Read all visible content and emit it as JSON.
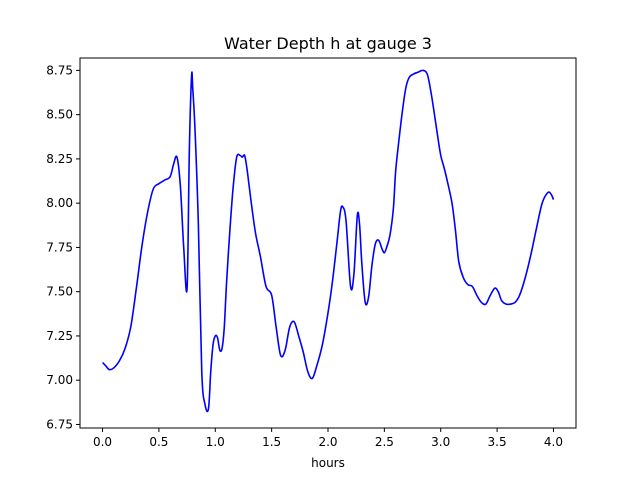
{
  "chart_data": {
    "type": "line",
    "title": "Water Depth h at gauge 3",
    "xlabel": "hours",
    "ylabel": "",
    "xlim": [
      -0.2,
      4.2
    ],
    "ylim": [
      6.73,
      8.82
    ],
    "xticks": [
      0.0,
      0.5,
      1.0,
      1.5,
      2.0,
      2.5,
      3.0,
      3.5,
      4.0
    ],
    "xtick_labels": [
      "0.0",
      "0.5",
      "1.0",
      "1.5",
      "2.0",
      "2.5",
      "3.0",
      "3.5",
      "4.0"
    ],
    "yticks": [
      6.75,
      7.0,
      7.25,
      7.5,
      7.75,
      8.0,
      8.25,
      8.5,
      8.75
    ],
    "ytick_labels": [
      "6.75",
      "7.00",
      "7.25",
      "7.50",
      "7.75",
      "8.00",
      "8.25",
      "8.50",
      "8.75"
    ],
    "grid": false,
    "series": [
      {
        "color": "#0000ff",
        "x": [
          0.0,
          0.03,
          0.06,
          0.1,
          0.15,
          0.2,
          0.25,
          0.3,
          0.35,
          0.4,
          0.45,
          0.5,
          0.55,
          0.6,
          0.63,
          0.66,
          0.69,
          0.72,
          0.75,
          0.77,
          0.79,
          0.8,
          0.82,
          0.85,
          0.88,
          0.91,
          0.94,
          0.96,
          0.98,
          1.0,
          1.02,
          1.04,
          1.06,
          1.08,
          1.1,
          1.13,
          1.16,
          1.19,
          1.22,
          1.24,
          1.26,
          1.28,
          1.3,
          1.33,
          1.36,
          1.4,
          1.45,
          1.5,
          1.54,
          1.58,
          1.62,
          1.66,
          1.7,
          1.74,
          1.78,
          1.82,
          1.86,
          1.9,
          1.95,
          2.0,
          2.04,
          2.08,
          2.11,
          2.13,
          2.16,
          2.2,
          2.23,
          2.26,
          2.28,
          2.3,
          2.33,
          2.36,
          2.39,
          2.42,
          2.45,
          2.48,
          2.5,
          2.52,
          2.55,
          2.58,
          2.6,
          2.63,
          2.66,
          2.69,
          2.72,
          2.76,
          2.8,
          2.84,
          2.88,
          2.91,
          2.94,
          2.97,
          3.0,
          3.03,
          3.06,
          3.1,
          3.13,
          3.16,
          3.2,
          3.24,
          3.28,
          3.32,
          3.36,
          3.4,
          3.44,
          3.48,
          3.51,
          3.54,
          3.58,
          3.62,
          3.66,
          3.7,
          3.75,
          3.8,
          3.85,
          3.9,
          3.95,
          3.98,
          4.0
        ],
        "values": [
          7.1,
          7.08,
          7.06,
          7.07,
          7.11,
          7.18,
          7.3,
          7.52,
          7.76,
          7.95,
          8.08,
          8.11,
          8.13,
          8.15,
          8.22,
          8.26,
          8.1,
          7.75,
          7.52,
          8.3,
          8.72,
          8.65,
          8.42,
          7.88,
          7.05,
          6.86,
          6.84,
          7.05,
          7.2,
          7.25,
          7.24,
          7.17,
          7.18,
          7.3,
          7.55,
          7.85,
          8.1,
          8.26,
          8.27,
          8.26,
          8.27,
          8.2,
          8.1,
          7.95,
          7.82,
          7.7,
          7.53,
          7.48,
          7.3,
          7.14,
          7.17,
          7.3,
          7.33,
          7.25,
          7.16,
          7.05,
          7.01,
          7.08,
          7.2,
          7.38,
          7.56,
          7.78,
          7.95,
          7.98,
          7.9,
          7.53,
          7.6,
          7.93,
          7.88,
          7.66,
          7.44,
          7.47,
          7.65,
          7.77,
          7.79,
          7.74,
          7.72,
          7.75,
          7.82,
          7.97,
          8.18,
          8.36,
          8.52,
          8.65,
          8.71,
          8.73,
          8.74,
          8.75,
          8.73,
          8.64,
          8.52,
          8.39,
          8.27,
          8.2,
          8.12,
          8.0,
          7.85,
          7.67,
          7.58,
          7.54,
          7.53,
          7.48,
          7.44,
          7.43,
          7.48,
          7.52,
          7.5,
          7.45,
          7.43,
          7.43,
          7.44,
          7.48,
          7.58,
          7.71,
          7.86,
          8.0,
          8.06,
          8.05,
          8.02
        ]
      }
    ]
  }
}
